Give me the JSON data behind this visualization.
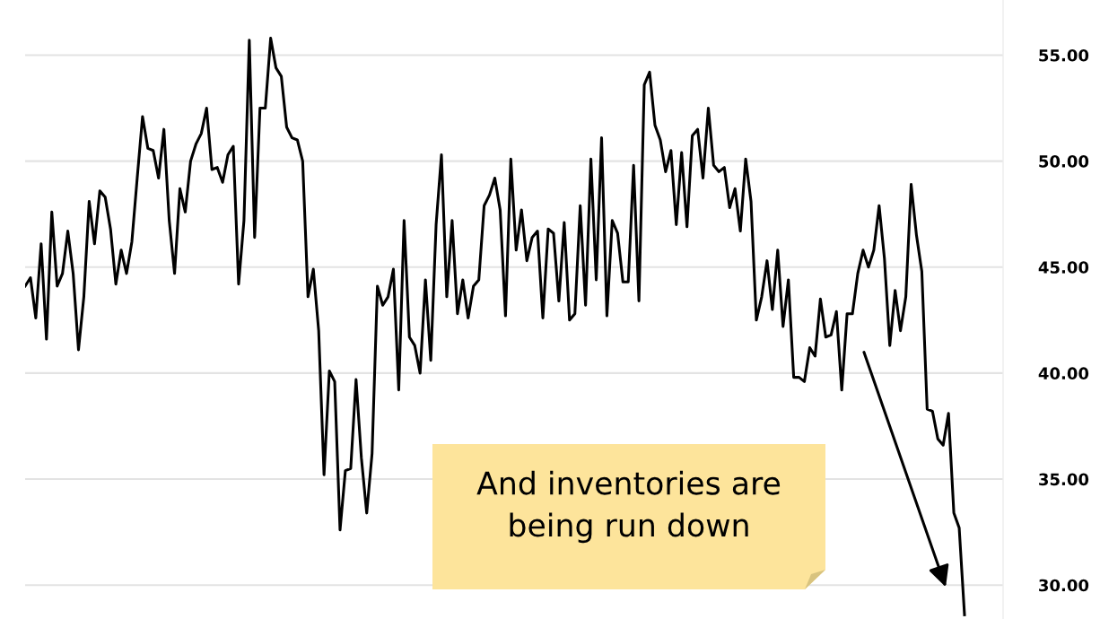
{
  "chart_data": {
    "type": "line",
    "categories": [
      null,
      null,
      null,
      null,
      null,
      null,
      null,
      null,
      null,
      null,
      null,
      null,
      null,
      null,
      null,
      null,
      null,
      null,
      null,
      null,
      null,
      null,
      null,
      null,
      null,
      null,
      null,
      null,
      null,
      null,
      null,
      null,
      null,
      null,
      null,
      null,
      null,
      null,
      null,
      null,
      null,
      null,
      null,
      null,
      null,
      null,
      null,
      null,
      null,
      null,
      null,
      null,
      null,
      null,
      null,
      null,
      null,
      null,
      null,
      null,
      null,
      null,
      null,
      null,
      null,
      null,
      null,
      null,
      null,
      null,
      null,
      null,
      null,
      null,
      null,
      null,
      null,
      null,
      null,
      null,
      null,
      null,
      null,
      null,
      null,
      null,
      null,
      null,
      null,
      null,
      null,
      null,
      null,
      null,
      null,
      null,
      null,
      null,
      null,
      null,
      null,
      null,
      null,
      null,
      null,
      null,
      null,
      null,
      null,
      null,
      null,
      null,
      null,
      null,
      null,
      null,
      null,
      null,
      null,
      null,
      null,
      null,
      null,
      null,
      null,
      null,
      null,
      null,
      null,
      null,
      null,
      null,
      null,
      null,
      null,
      null,
      null,
      null,
      null,
      null,
      null,
      null,
      null,
      null,
      null,
      null,
      null,
      null,
      null,
      null,
      null,
      null,
      null,
      null,
      null,
      null,
      null,
      null,
      null,
      null,
      null,
      null,
      null,
      null,
      null,
      null,
      null,
      null,
      null,
      null,
      null,
      null,
      null,
      null,
      null,
      null,
      null
    ],
    "series": [
      {
        "color": "#000000",
        "values": [
          44.1,
          44.5,
          42.6,
          46.1,
          41.6,
          47.6,
          44.1,
          44.7,
          46.7,
          44.7,
          41.1,
          43.6,
          48.1,
          46.1,
          48.6,
          48.3,
          46.8,
          44.2,
          45.8,
          44.7,
          46.2,
          49.2,
          52.1,
          50.6,
          50.5,
          49.2,
          51.5,
          47.2,
          44.7,
          48.7,
          47.6,
          50.0,
          50.8,
          51.3,
          52.5,
          49.6,
          49.7,
          49.0,
          50.3,
          50.7,
          44.2,
          47.2,
          55.7,
          46.4,
          52.5,
          52.5,
          55.8,
          54.4,
          54.0,
          51.6,
          51.1,
          51.0,
          50.0,
          43.6,
          44.9,
          42.0,
          35.2,
          40.1,
          39.6,
          32.6,
          35.4,
          35.5,
          39.7,
          36.0,
          33.4,
          36.2,
          44.1,
          43.2,
          43.6,
          44.9,
          39.2,
          47.2,
          41.7,
          41.3,
          40.0,
          44.4,
          40.6,
          47.0,
          50.3,
          43.6,
          47.2,
          42.8,
          44.4,
          42.6,
          44.1,
          44.4,
          47.9,
          48.4,
          49.2,
          47.7,
          42.7,
          50.1,
          45.8,
          47.7,
          45.3,
          46.4,
          46.7,
          42.6,
          46.8,
          46.6,
          43.4,
          47.1,
          42.5,
          42.8,
          47.9,
          43.2,
          50.1,
          44.4,
          51.1,
          42.7,
          47.2,
          46.6,
          44.3,
          44.3,
          49.8,
          43.4,
          53.6,
          54.2,
          51.7,
          51.0,
          49.5,
          50.5,
          47.0,
          50.4,
          46.9,
          51.2,
          51.5,
          49.2,
          52.5,
          49.8,
          49.5,
          49.7,
          47.8,
          48.7,
          46.7,
          50.1,
          48.1,
          42.5,
          43.6,
          45.3,
          43.0,
          45.8,
          42.2,
          44.4,
          39.8,
          39.8,
          39.6,
          41.2,
          40.8,
          43.5,
          41.7,
          41.8,
          42.9,
          39.2,
          42.8,
          42.8,
          44.7,
          45.8,
          45.0,
          45.8,
          47.9,
          45.4,
          41.3,
          43.9,
          42.0,
          43.6,
          48.9,
          46.5,
          44.8,
          38.3,
          38.2,
          36.9,
          36.6,
          38.1,
          33.4,
          32.7,
          28.6
        ]
      }
    ],
    "ylim": [
      28.4,
      57.6
    ],
    "yticks": [
      {
        "value": 30,
        "label": "30.00"
      },
      {
        "value": 35,
        "label": "35.00"
      },
      {
        "value": 40,
        "label": "40.00"
      },
      {
        "value": 45,
        "label": "45.00"
      },
      {
        "value": 50,
        "label": "50.00"
      },
      {
        "value": 55,
        "label": "55.00"
      }
    ],
    "tick_labels": "y",
    "grid": "y",
    "legend": false,
    "marker": "none",
    "line_style": "solid",
    "annotations": [
      "And inventories are\nbeing run down"
    ]
  }
}
